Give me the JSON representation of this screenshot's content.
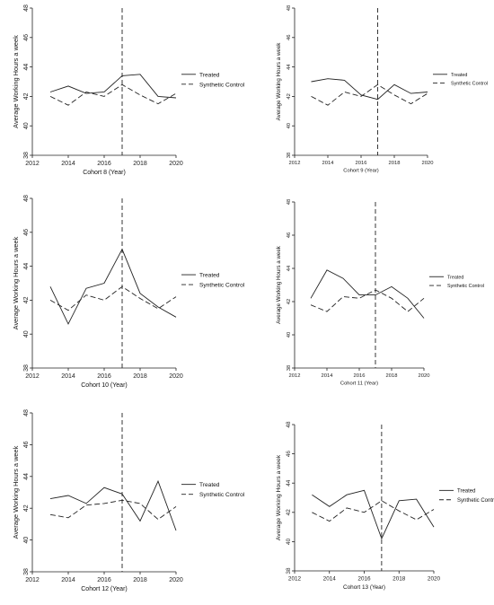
{
  "chart_data": [
    {
      "type": "line",
      "xlabel": "Cohort 8 (Year)",
      "ylabel": "Average Working Hours a week",
      "xlim": [
        2012,
        2020
      ],
      "ylim": [
        38,
        48
      ],
      "xticks": [
        "2012",
        "2014",
        "2016",
        "2018",
        "2020"
      ],
      "yticks": [
        "38",
        "40",
        "42",
        "44",
        "46",
        "48"
      ],
      "treatment_year": 2017,
      "x": [
        2013,
        2014,
        2015,
        2016,
        2017,
        2018,
        2019,
        2020
      ],
      "series": [
        {
          "name": "Treated",
          "style": "solid",
          "values": [
            42.3,
            42.7,
            42.2,
            42.3,
            43.4,
            43.5,
            42.0,
            41.9
          ]
        },
        {
          "name": "Synthetic Control",
          "style": "dashed",
          "values": [
            42.0,
            41.4,
            42.3,
            42.0,
            42.8,
            42.1,
            41.5,
            42.2
          ]
        }
      ]
    },
    {
      "type": "line",
      "xlabel": "Cohort 9 (Year)",
      "ylabel": "Average Working Hours a week",
      "xlim": [
        2012,
        2020
      ],
      "ylim": [
        38,
        48
      ],
      "xticks": [
        "2012",
        "2014",
        "2016",
        "2018",
        "2020"
      ],
      "yticks": [
        "38",
        "40",
        "42",
        "44",
        "46",
        "48"
      ],
      "treatment_year": 2017,
      "x": [
        2013,
        2014,
        2015,
        2016,
        2017,
        2018,
        2019,
        2020
      ],
      "series": [
        {
          "name": "Treated",
          "style": "solid",
          "values": [
            43.0,
            43.2,
            43.1,
            42.1,
            41.8,
            42.8,
            42.2,
            42.3
          ]
        },
        {
          "name": "Synthetic Control",
          "style": "dashed",
          "values": [
            42.0,
            41.4,
            42.3,
            42.0,
            42.8,
            42.1,
            41.5,
            42.2
          ]
        }
      ]
    },
    {
      "type": "line",
      "xlabel": "Cohort 10 (Year)",
      "ylabel": "Average Working Hours a week",
      "xlim": [
        2012,
        2020
      ],
      "ylim": [
        38,
        48
      ],
      "xticks": [
        "2012",
        "2014",
        "2016",
        "2018",
        "2020"
      ],
      "yticks": [
        "38",
        "40",
        "42",
        "44",
        "46",
        "48"
      ],
      "treatment_year": 2017,
      "x": [
        2013,
        2014,
        2015,
        2016,
        2017,
        2018,
        2019,
        2020
      ],
      "series": [
        {
          "name": "Treated",
          "style": "solid",
          "values": [
            42.8,
            40.6,
            42.7,
            43.0,
            45.0,
            42.4,
            41.6,
            41.0
          ]
        },
        {
          "name": "Synthetic Control",
          "style": "dashed",
          "values": [
            42.0,
            41.4,
            42.3,
            42.0,
            42.8,
            42.1,
            41.5,
            42.2
          ]
        }
      ]
    },
    {
      "type": "line",
      "xlabel": "Cohort 11 (Year)",
      "ylabel": "Average Working Hours a week",
      "xlim": [
        2012,
        2020
      ],
      "ylim": [
        38,
        48
      ],
      "xticks": [
        "2012",
        "2014",
        "2016",
        "2018",
        "2020"
      ],
      "yticks": [
        "38",
        "40",
        "42",
        "44",
        "46",
        "48"
      ],
      "treatment_year": 2017,
      "x": [
        2013,
        2014,
        2015,
        2016,
        2017,
        2018,
        2019,
        2020
      ],
      "series": [
        {
          "name": "Treated",
          "style": "solid",
          "values": [
            42.2,
            43.9,
            43.4,
            42.4,
            42.4,
            42.9,
            42.2,
            41.0
          ]
        },
        {
          "name": "Synthetic Control",
          "style": "dashed",
          "values": [
            41.8,
            41.4,
            42.3,
            42.2,
            42.7,
            42.2,
            41.4,
            42.2
          ]
        }
      ]
    },
    {
      "type": "line",
      "xlabel": "Cohort 12 (Year)",
      "ylabel": "Average Working Hours a week",
      "xlim": [
        2012,
        2020
      ],
      "ylim": [
        38,
        48
      ],
      "xticks": [
        "2012",
        "2014",
        "2016",
        "2018",
        "2020"
      ],
      "yticks": [
        "38",
        "40",
        "42",
        "44",
        "46",
        "48"
      ],
      "treatment_year": 2017,
      "x": [
        2013,
        2014,
        2015,
        2016,
        2017,
        2018,
        2019,
        2020
      ],
      "series": [
        {
          "name": "Treated",
          "style": "solid",
          "values": [
            42.6,
            42.8,
            42.3,
            43.3,
            42.9,
            41.2,
            43.7,
            40.6
          ]
        },
        {
          "name": "Synthetic Control",
          "style": "dashed",
          "values": [
            41.6,
            41.4,
            42.2,
            42.3,
            42.5,
            42.3,
            41.3,
            42.1
          ]
        }
      ]
    },
    {
      "type": "line",
      "xlabel": "Cohort 13 (Year)",
      "ylabel": "Average Working Hours a week",
      "xlim": [
        2012,
        2020
      ],
      "ylim": [
        38,
        48
      ],
      "xticks": [
        "2012",
        "2014",
        "2016",
        "2018",
        "2020"
      ],
      "yticks": [
        "38",
        "40",
        "42",
        "44",
        "46",
        "48"
      ],
      "treatment_year": 2017,
      "x": [
        2013,
        2014,
        2015,
        2016,
        2017,
        2018,
        2019,
        2020
      ],
      "series": [
        {
          "name": "Treated",
          "style": "solid",
          "values": [
            43.2,
            42.4,
            43.2,
            43.5,
            40.2,
            42.8,
            42.9,
            41.0
          ]
        },
        {
          "name": "Synthetic Control",
          "style": "dashed",
          "values": [
            42.0,
            41.4,
            42.3,
            42.0,
            42.8,
            42.1,
            41.5,
            42.2
          ]
        }
      ]
    }
  ]
}
